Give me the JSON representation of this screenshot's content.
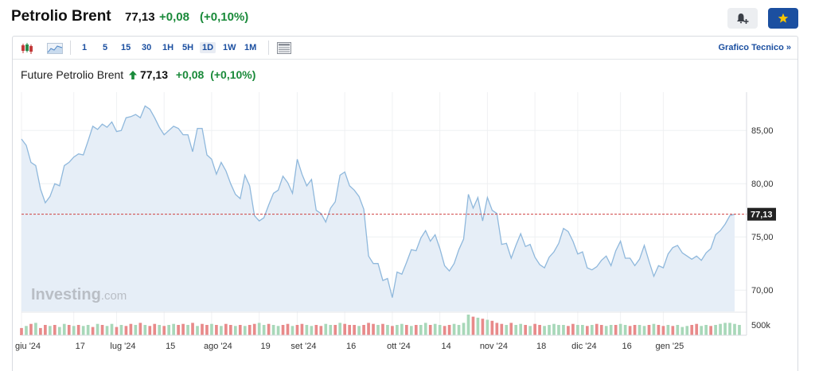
{
  "header": {
    "title": "Petrolio Brent",
    "price": "77,13",
    "change": "+0,08",
    "change_pct": "(+0,10%)"
  },
  "toolbar": {
    "timeframes": [
      "1",
      "5",
      "15",
      "30",
      "1H",
      "5H",
      "1D",
      "1W",
      "1M"
    ],
    "active_timeframe": "1D",
    "technical_link": "Grafico Tecnico »"
  },
  "chart_header": {
    "name": "Future Petrolio Brent",
    "price": "77,13",
    "change": "+0,08",
    "change_pct": "(+0,10%)"
  },
  "watermark": {
    "brand": "Investing",
    "suffix": ".com"
  },
  "colors": {
    "accent": "#1b4fa0",
    "up": "#1a8a3a",
    "line": "#8fb8dc",
    "area": "#e6eef7",
    "vol_up": "#a8d8b9",
    "vol_down": "#e88a8a",
    "last_line": "#d04040"
  },
  "chart_data": {
    "type": "area",
    "ylabel": "",
    "ylim": [
      68.0,
      88.6
    ],
    "y_ticks": [
      "85,00",
      "80,00",
      "75,00",
      "70,00"
    ],
    "y_tick_values": [
      85,
      80,
      75,
      70
    ],
    "last_value": 77.13,
    "last_label": "77,13",
    "volume_label": "500k",
    "x_ticks": [
      "giu '24",
      "17",
      "lug '24",
      "15",
      "ago '24",
      "19",
      "set '24",
      "16",
      "ott '24",
      "14",
      "nov '24",
      "18",
      "dic '24",
      "16",
      "gen '25"
    ],
    "x_tick_positions": [
      0,
      11,
      20,
      30,
      40,
      50,
      58,
      68,
      78,
      88,
      98,
      108,
      117,
      126,
      135
    ],
    "series": [
      {
        "values": [
          84.2,
          83.6,
          82.0,
          81.7,
          79.5,
          78.2,
          78.8,
          80.0,
          79.8,
          81.7,
          82.0,
          82.5,
          82.8,
          82.7,
          84.0,
          85.4,
          85.1,
          85.6,
          85.3,
          85.8,
          84.9,
          85.0,
          86.2,
          86.3,
          86.5,
          86.2,
          87.3,
          87.0,
          86.2,
          85.3,
          84.6,
          85.0,
          85.4,
          85.2,
          84.6,
          84.6,
          83.0,
          85.2,
          85.2,
          82.7,
          82.3,
          80.9,
          82.0,
          81.2,
          80.0,
          79.0,
          78.6,
          80.8,
          79.8,
          77.0,
          76.5,
          76.8,
          78.0,
          79.1,
          79.4,
          80.7,
          80.1,
          79.1,
          82.3,
          80.9,
          79.8,
          80.4,
          77.5,
          77.2,
          76.4,
          77.7,
          78.3,
          80.8,
          81.1,
          79.8,
          79.4,
          78.8,
          77.6,
          73.2,
          72.5,
          72.5,
          70.9,
          71.1,
          69.3,
          71.7,
          71.5,
          72.6,
          73.8,
          73.7,
          74.9,
          75.6,
          74.6,
          75.2,
          73.9,
          72.3,
          71.8,
          72.5,
          73.8,
          74.8,
          79.0,
          77.7,
          78.7,
          76.5,
          78.7,
          77.5,
          77.2,
          74.3,
          74.4,
          73.0,
          74.2,
          75.3,
          74.1,
          74.3,
          73.1,
          72.4,
          72.1,
          73.1,
          73.6,
          74.4,
          75.8,
          75.5,
          74.6,
          73.4,
          73.6,
          72.1,
          71.9,
          72.2,
          72.8,
          73.2,
          72.3,
          73.7,
          74.6,
          73.0,
          73.0,
          72.3,
          72.9,
          74.2,
          72.7,
          71.3,
          72.3,
          72.1,
          73.4,
          74.0,
          74.2,
          73.5,
          73.2,
          72.9,
          73.2,
          72.8,
          73.5,
          73.9,
          75.2,
          75.6,
          76.2,
          77.0,
          77.13
        ]
      }
    ],
    "volume_direction": [
      0,
      1,
      0,
      1,
      0,
      0,
      1,
      0,
      1,
      1,
      0,
      1,
      0,
      1,
      1,
      0,
      1,
      0,
      1,
      1,
      0,
      1,
      0,
      0,
      1,
      0,
      1,
      0,
      0,
      1,
      0,
      1,
      1,
      0,
      0,
      1,
      0,
      1,
      0,
      0,
      1,
      0,
      1,
      0,
      0,
      1,
      0,
      1,
      0,
      0,
      1,
      1,
      0,
      1,
      1,
      0,
      0,
      1,
      0,
      0,
      1,
      1,
      0,
      0,
      1,
      1,
      0,
      1,
      0,
      0,
      0,
      1,
      0,
      0,
      0,
      1,
      0,
      1,
      0,
      1,
      1,
      0,
      1,
      0,
      1,
      1,
      0,
      1,
      1,
      0,
      0,
      1,
      1,
      1,
      1,
      0,
      1,
      0,
      1,
      0,
      0,
      0,
      1,
      0,
      1,
      1,
      0,
      1,
      0,
      0,
      1,
      1,
      1,
      1,
      1,
      0,
      0,
      1,
      1,
      0,
      1,
      0,
      0,
      1,
      1,
      0,
      1,
      1,
      0,
      0,
      1,
      1,
      0,
      1,
      0,
      0,
      1,
      0,
      1,
      1,
      1,
      0,
      0,
      1,
      1,
      0,
      1,
      1,
      1,
      1,
      1,
      1
    ],
    "volume_values": [
      0.35,
      0.45,
      0.55,
      0.6,
      0.35,
      0.5,
      0.45,
      0.5,
      0.4,
      0.55,
      0.5,
      0.45,
      0.5,
      0.45,
      0.5,
      0.4,
      0.55,
      0.5,
      0.45,
      0.55,
      0.4,
      0.5,
      0.45,
      0.55,
      0.5,
      0.6,
      0.5,
      0.45,
      0.55,
      0.5,
      0.45,
      0.5,
      0.55,
      0.5,
      0.55,
      0.5,
      0.6,
      0.45,
      0.55,
      0.5,
      0.55,
      0.5,
      0.45,
      0.55,
      0.5,
      0.45,
      0.5,
      0.45,
      0.5,
      0.55,
      0.6,
      0.5,
      0.55,
      0.5,
      0.45,
      0.5,
      0.55,
      0.45,
      0.5,
      0.55,
      0.5,
      0.45,
      0.5,
      0.45,
      0.55,
      0.5,
      0.5,
      0.6,
      0.55,
      0.5,
      0.5,
      0.45,
      0.5,
      0.6,
      0.55,
      0.5,
      0.55,
      0.5,
      0.45,
      0.5,
      0.55,
      0.5,
      0.45,
      0.5,
      0.5,
      0.6,
      0.5,
      0.55,
      0.5,
      0.45,
      0.5,
      0.55,
      0.5,
      0.6,
      1.0,
      0.9,
      0.85,
      0.8,
      0.75,
      0.7,
      0.6,
      0.55,
      0.5,
      0.6,
      0.5,
      0.55,
      0.5,
      0.45,
      0.55,
      0.5,
      0.45,
      0.5,
      0.55,
      0.5,
      0.5,
      0.45,
      0.55,
      0.5,
      0.5,
      0.45,
      0.5,
      0.55,
      0.5,
      0.45,
      0.5,
      0.5,
      0.55,
      0.5,
      0.45,
      0.5,
      0.5,
      0.45,
      0.5,
      0.55,
      0.5,
      0.45,
      0.5,
      0.45,
      0.5,
      0.4,
      0.45,
      0.5,
      0.55,
      0.45,
      0.5,
      0.45,
      0.5,
      0.55,
      0.6,
      0.6,
      0.55,
      0.5
    ]
  }
}
